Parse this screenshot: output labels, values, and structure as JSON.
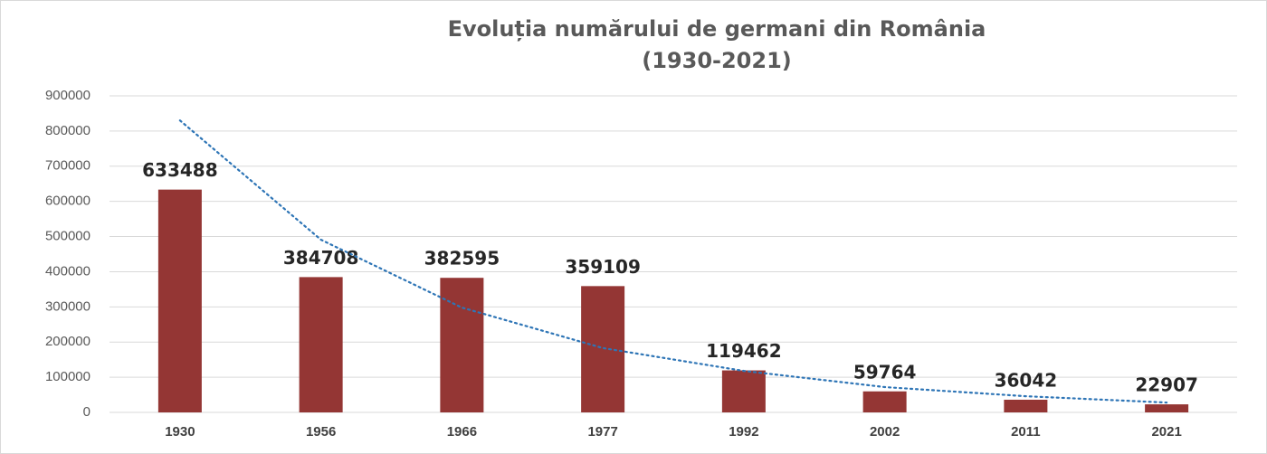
{
  "chart_data": {
    "type": "bar",
    "title": "Evoluția numărului de germani din România",
    "subtitle": "(1930-2021)",
    "categories": [
      "1930",
      "1956",
      "1966",
      "1977",
      "1992",
      "2002",
      "2011",
      "2021"
    ],
    "values": [
      633488,
      384708,
      382595,
      359109,
      119462,
      59764,
      36042,
      22907
    ],
    "color": "#943634",
    "ylim": [
      0,
      900000
    ],
    "yticks": [
      0,
      100000,
      200000,
      300000,
      400000,
      500000,
      600000,
      700000,
      800000,
      900000
    ],
    "grid": true,
    "trendline": {
      "color": "#2e75b6",
      "values": [
        830000,
        491000,
        298000,
        183000,
        118000,
        72000,
        46000,
        28000
      ]
    }
  }
}
